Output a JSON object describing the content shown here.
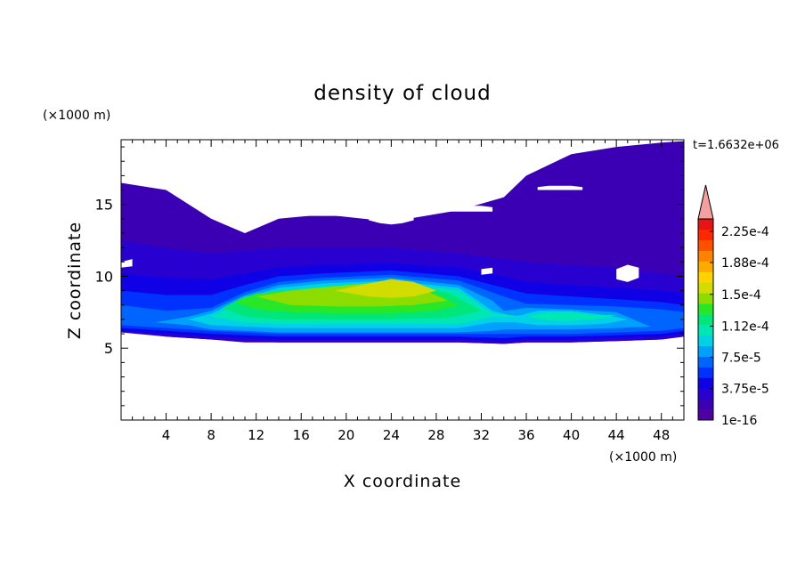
{
  "chart_data": {
    "type": "heatmap",
    "title": "density of cloud",
    "xlabel": "X coordinate",
    "ylabel": "Z coordinate",
    "x_unit": "(×1000 m)",
    "y_unit": "(×1000 m)",
    "time_label": "t=1.6632e+06",
    "xlim": [
      0,
      50
    ],
    "ylim": [
      0,
      19.5
    ],
    "x_ticks": [
      4,
      8,
      12,
      16,
      20,
      24,
      28,
      32,
      36,
      40,
      44,
      48
    ],
    "x_tick_labels": [
      "4",
      "8",
      "12",
      "16",
      "20",
      "24",
      "28",
      "32",
      "36",
      "40",
      "44",
      "48"
    ],
    "y_ticks": [
      5,
      10,
      15
    ],
    "y_tick_labels": [
      "5",
      "10",
      "15"
    ],
    "colorbar": {
      "min": 1e-16,
      "max": 0.00024,
      "extend": "max",
      "extend_color": "#f4a0a0",
      "tick_values": [
        1e-16,
        3.75e-05,
        7.5e-05,
        0.000112,
        0.00015,
        0.000188,
        0.000225
      ],
      "tick_labels": [
        "1e-16",
        "3.75e-5",
        "7.5e-5",
        "1.12e-4",
        "1.5e-4",
        "1.88e-4",
        "2.25e-4"
      ],
      "colors": [
        "#5000a0",
        "#3c00b4",
        "#2800d0",
        "#1000e6",
        "#0032ff",
        "#0064ff",
        "#00a0ff",
        "#00d2e6",
        "#00e6b4",
        "#00e678",
        "#28e628",
        "#8cdc00",
        "#d2dc00",
        "#ffd200",
        "#ffaa00",
        "#ff8200",
        "#ff5000",
        "#ff2800",
        "#e61414"
      ]
    },
    "layers": [
      {
        "level": 1,
        "x": [
          0,
          4,
          8,
          11,
          14,
          18,
          24,
          30,
          34,
          36,
          40,
          44,
          48,
          50
        ],
        "bottom": [
          6.2,
          5.8,
          5.6,
          5.4,
          5.4,
          5.4,
          5.4,
          5.4,
          5.3,
          5.4,
          5.4,
          5.5,
          5.6,
          5.8
        ],
        "top": [
          16.5,
          16.0,
          14.0,
          13.0,
          14.0,
          14.3,
          13.8,
          14.6,
          15.5,
          17.0,
          18.5,
          19.0,
          19.3,
          19.4
        ]
      },
      {
        "level": 2,
        "x": [
          0,
          4,
          8,
          11,
          14,
          18,
          24,
          30,
          34,
          36,
          40,
          44,
          48,
          50
        ],
        "bottom": [
          6.1,
          5.8,
          5.6,
          5.5,
          5.4,
          5.4,
          5.4,
          5.4,
          5.3,
          5.4,
          5.4,
          5.5,
          5.6,
          5.8
        ],
        "top": [
          12.5,
          12.0,
          11.6,
          11.8,
          12.0,
          12.0,
          12.0,
          11.6,
          11.2,
          11.0,
          10.8,
          10.6,
          10.2,
          10.0
        ]
      },
      {
        "level": 3,
        "x": [
          0,
          4,
          8,
          11,
          14,
          18,
          24,
          30,
          34,
          36,
          40,
          44,
          48,
          50
        ],
        "bottom": [
          6.2,
          6.0,
          5.8,
          5.7,
          5.6,
          5.6,
          5.6,
          5.6,
          5.5,
          5.6,
          5.6,
          5.7,
          5.8,
          6.0
        ],
        "top": [
          10.2,
          9.9,
          9.8,
          10.2,
          10.6,
          10.8,
          10.9,
          10.6,
          10.0,
          9.6,
          9.4,
          9.2,
          9.0,
          8.8
        ]
      },
      {
        "level": 4,
        "x": [
          0,
          4,
          8,
          11,
          14,
          18,
          24,
          30,
          34,
          36,
          40,
          44,
          48,
          50
        ],
        "bottom": [
          6.4,
          6.2,
          6.0,
          5.9,
          5.8,
          5.8,
          5.8,
          5.8,
          5.7,
          5.8,
          5.8,
          5.9,
          6.0,
          6.2
        ],
        "top": [
          9.0,
          8.7,
          8.7,
          9.4,
          10.0,
          10.2,
          10.4,
          10.0,
          9.2,
          8.8,
          8.6,
          8.4,
          8.2,
          8.0
        ]
      },
      {
        "level": 5,
        "x": [
          0,
          4,
          8,
          11,
          14,
          18,
          24,
          30,
          34,
          36,
          40,
          44,
          48,
          50
        ],
        "bottom": [
          6.6,
          6.4,
          6.2,
          6.1,
          6.0,
          6.0,
          6.0,
          6.0,
          6.0,
          6.0,
          6.0,
          6.1,
          6.2,
          6.4
        ],
        "top": [
          8.0,
          7.6,
          7.8,
          8.9,
          9.6,
          9.9,
          10.1,
          9.7,
          8.6,
          8.1,
          8.0,
          7.9,
          7.7,
          7.5
        ]
      },
      {
        "level": 6,
        "x": [
          3,
          6,
          8,
          11,
          14,
          18,
          24,
          30,
          33,
          34,
          36,
          40,
          44,
          47
        ],
        "bottom": [
          6.8,
          6.6,
          6.3,
          6.2,
          6.1,
          6.1,
          6.1,
          6.1,
          6.2,
          6.3,
          6.3,
          6.3,
          6.4,
          6.5
        ],
        "top": [
          6.8,
          7.2,
          7.6,
          8.7,
          9.4,
          9.7,
          9.9,
          9.4,
          8.3,
          7.6,
          7.8,
          7.7,
          7.5,
          6.5
        ]
      },
      {
        "level": 7,
        "x": [
          6,
          8,
          11,
          14,
          18,
          24,
          30,
          33,
          35,
          37,
          40,
          43,
          45
        ],
        "bottom": [
          7.0,
          6.6,
          6.5,
          6.4,
          6.4,
          6.4,
          6.4,
          6.8,
          6.8,
          6.6,
          6.6,
          6.7,
          7.0
        ],
        "top": [
          7.0,
          7.4,
          8.5,
          9.2,
          9.5,
          9.7,
          9.2,
          7.6,
          7.2,
          7.6,
          7.6,
          7.3,
          7.0
        ]
      },
      {
        "level": 8,
        "x": [
          8,
          11,
          14,
          18,
          24,
          30,
          33,
          36,
          38,
          40,
          42,
          44
        ],
        "bottom": [
          7.2,
          6.8,
          6.7,
          6.7,
          6.7,
          6.7,
          7.2,
          7.2,
          6.9,
          6.9,
          7.0,
          7.3
        ],
        "top": [
          7.2,
          8.3,
          9.0,
          9.3,
          9.6,
          9.0,
          7.4,
          7.2,
          7.5,
          7.5,
          7.3,
          7.3
        ]
      },
      {
        "level": 9,
        "x": [
          9,
          11,
          14,
          18,
          24,
          29,
          32
        ],
        "bottom": [
          7.8,
          7.2,
          7.0,
          7.0,
          7.0,
          7.1,
          7.6
        ],
        "top": [
          7.8,
          8.6,
          9.0,
          9.2,
          9.5,
          8.9,
          7.6
        ]
      },
      {
        "level": 10,
        "x": [
          10,
          12,
          15,
          19,
          24,
          28,
          30
        ],
        "bottom": [
          8.2,
          7.7,
          7.5,
          7.4,
          7.4,
          7.6,
          8.0
        ],
        "top": [
          8.2,
          8.8,
          9.0,
          9.2,
          9.5,
          8.8,
          8.0
        ]
      },
      {
        "level": 11,
        "x": [
          12,
          15,
          19,
          23,
          26,
          29
        ],
        "bottom": [
          8.6,
          8.0,
          7.9,
          7.9,
          8.0,
          8.3
        ],
        "top": [
          8.6,
          9.0,
          9.3,
          9.6,
          9.4,
          8.3
        ]
      },
      {
        "level": 12,
        "x": [
          19,
          22,
          24,
          26,
          28
        ],
        "bottom": [
          9.0,
          8.6,
          8.5,
          8.6,
          9.0
        ],
        "top": [
          9.0,
          9.5,
          9.8,
          9.6,
          9.0
        ]
      }
    ],
    "holes": [
      {
        "x": [
          0,
          1,
          2,
          3,
          4,
          4,
          3,
          2,
          1,
          0
        ],
        "y": [
          18.2,
          18.4,
          18.4,
          18.3,
          18.2,
          18.2,
          18.2,
          18.1,
          18.0,
          18.0
        ]
      },
      {
        "x": [
          16,
          17,
          18,
          19,
          20,
          20,
          19,
          18,
          17,
          16
        ],
        "y": [
          14.6,
          14.6,
          14.6,
          14.6,
          14.6,
          14.2,
          14.2,
          14.2,
          14.2,
          14.2
        ]
      },
      {
        "x": [
          22,
          23,
          24,
          25,
          26,
          26,
          25,
          24,
          23,
          22
        ],
        "y": [
          14.3,
          14.6,
          14.7,
          14.6,
          14.3,
          13.9,
          13.7,
          13.6,
          13.7,
          13.9
        ]
      },
      {
        "x": [
          29,
          30,
          31,
          32,
          33,
          33,
          32,
          31,
          30,
          29
        ],
        "y": [
          14.7,
          14.8,
          14.9,
          14.9,
          14.8,
          14.5,
          14.5,
          14.5,
          14.5,
          14.5
        ]
      },
      {
        "x": [
          37,
          38,
          39,
          40,
          41,
          41,
          40,
          39,
          38,
          37
        ],
        "y": [
          16.2,
          16.3,
          16.3,
          16.3,
          16.2,
          16.0,
          16.0,
          16.0,
          16.0,
          16.0
        ]
      },
      {
        "x": [
          44,
          45,
          46,
          46,
          45,
          44
        ],
        "y": [
          10.5,
          10.8,
          10.6,
          9.9,
          9.6,
          9.8
        ]
      },
      {
        "x": [
          32,
          33,
          33,
          32
        ],
        "y": [
          10.5,
          10.6,
          10.2,
          10.1
        ]
      },
      {
        "x": [
          0,
          1,
          1,
          0
        ],
        "y": [
          11.0,
          11.2,
          10.7,
          10.6
        ]
      }
    ]
  }
}
